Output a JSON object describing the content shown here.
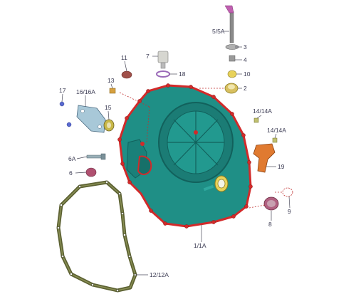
{
  "parts": [
    {
      "key": "p1",
      "label": "1/1A"
    },
    {
      "key": "p2",
      "label": "2"
    },
    {
      "key": "p3",
      "label": "3"
    },
    {
      "key": "p4",
      "label": "4"
    },
    {
      "key": "p5",
      "label": "5/5A"
    },
    {
      "key": "p6",
      "label": "6"
    },
    {
      "key": "p6a",
      "label": "6A"
    },
    {
      "key": "p7",
      "label": "7"
    },
    {
      "key": "p8",
      "label": "8"
    },
    {
      "key": "p9",
      "label": "9"
    },
    {
      "key": "p10",
      "label": "10"
    },
    {
      "key": "p11",
      "label": "11"
    },
    {
      "key": "p12",
      "label": "12/12A"
    },
    {
      "key": "p13",
      "label": "13"
    },
    {
      "key": "p14a",
      "label": "14/14A"
    },
    {
      "key": "p14b",
      "label": "14/14A"
    },
    {
      "key": "p15",
      "label": "15"
    },
    {
      "key": "p16",
      "label": "16/16A"
    },
    {
      "key": "p17",
      "label": "17"
    },
    {
      "key": "p18",
      "label": "18"
    },
    {
      "key": "p19",
      "label": "19"
    }
  ],
  "colors": {
    "cover": "#1f8f86",
    "cover_dark": "#12615c",
    "gasket_red": "#d22a2a",
    "outer_gasket": "#5c6132",
    "bracket": "#e07a30",
    "leader": "#4a4a5a"
  }
}
